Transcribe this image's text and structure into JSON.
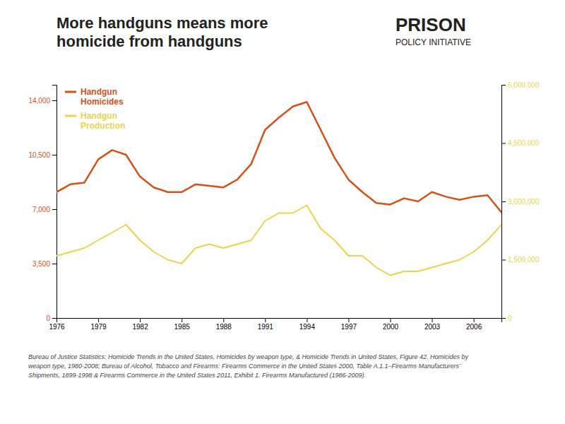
{
  "chart_data": {
    "type": "line",
    "title": "More handguns means more\nhomicide from handguns",
    "annotations": [
      "PRISON",
      "POLICY INITIATIVE"
    ],
    "source": "Bureau of Justice Statistics: Homicide Trends in the United States, Homicides by weapon type, & Homicide Trends in United States, Figure 42. Homicides by\nweapon type, 1980-2008; Bureau of Alcohol, Tobacco and Firearms: Firearms Commerce in the United States 2000, Table A.1.1–Firearms Manufacturers’\nShipments, 1899-1998 & Firearms Commerce in the United States 2011, Exhibit 1. Firearms Manufactured (1986-2009).",
    "x": [
      1976,
      1977,
      1978,
      1979,
      1980,
      1981,
      1982,
      1983,
      1984,
      1985,
      1986,
      1987,
      1988,
      1989,
      1990,
      1991,
      1992,
      1993,
      1994,
      1995,
      1996,
      1997,
      1998,
      1999,
      2000,
      2001,
      2002,
      2003,
      2004,
      2005,
      2006,
      2007,
      2008
    ],
    "series": [
      {
        "name": "Handgun\nHomicides",
        "color": "#d2521a",
        "values": [
          8100,
          8600,
          8700,
          10200,
          10800,
          10500,
          9100,
          8400,
          8100,
          8100,
          8600,
          8500,
          8400,
          8900,
          9900,
          12100,
          12900,
          13600,
          13900,
          12100,
          10300,
          8900,
          8100,
          7400,
          7300,
          7700,
          7500,
          8100,
          7800,
          7600,
          7800,
          7900,
          6800
        ]
      },
      {
        "name": "Handgun\nProduction",
        "color": "#e8d44d",
        "axis": "y2",
        "values": [
          1600000,
          1700000,
          1800000,
          2000000,
          2200000,
          2400000,
          2000000,
          1700000,
          1500000,
          1400000,
          1800000,
          1900000,
          1800000,
          1900000,
          2000000,
          2500000,
          2700000,
          2700000,
          2900000,
          2300000,
          2000000,
          1600000,
          1600000,
          1300000,
          1100000,
          1200000,
          1200000,
          1300000,
          1400000,
          1500000,
          1700000,
          2000000,
          2400000
        ]
      }
    ],
    "xlim": [
      1976,
      2008
    ],
    "xticks": [
      1976,
      1979,
      1982,
      1985,
      1988,
      1991,
      1994,
      1997,
      2000,
      2003,
      2006
    ],
    "ylim": [
      0,
      15000
    ],
    "yticks": [
      0,
      {
        "value": 3500,
        "label": "3,500"
      },
      {
        "value": 7000,
        "label": "7,000"
      },
      {
        "value": 10500,
        "label": "10,500"
      },
      {
        "value": 14000,
        "label": "14,000"
      }
    ],
    "y2lim": [
      0,
      6000000
    ],
    "y2ticks": [
      0,
      {
        "value": 1500000,
        "label": "1,500,000"
      },
      {
        "value": 3000000,
        "label": "3,000,000"
      },
      {
        "value": 4500000,
        "label": "4,500,000"
      },
      {
        "value": 6000000,
        "label": "6,000,000"
      }
    ],
    "grid": false,
    "legend": "upper left"
  }
}
